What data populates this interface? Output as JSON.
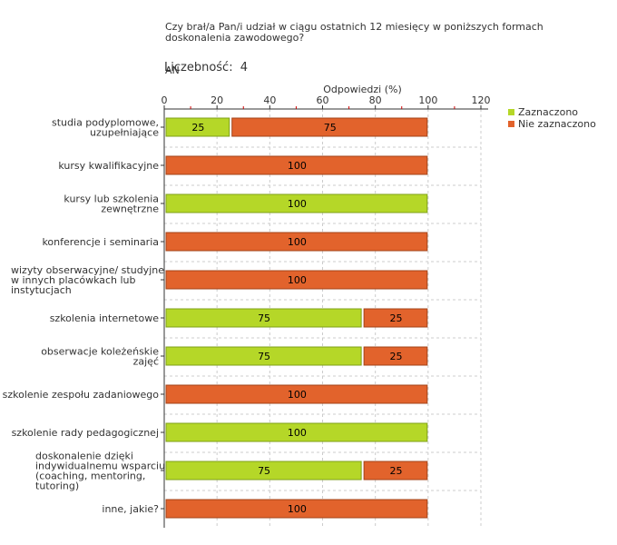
{
  "question": {
    "text": "Czy brał/a Pan/i udział w ciągu ostatnich 12 miesięcy w poniższych formach doskonalenia zawodowego?",
    "respondent_group": " AN"
  },
  "count": {
    "label": "Liczebność:",
    "value": "4"
  },
  "colors": {
    "selected": "#b5d728",
    "selected_stroke": "#7fa018",
    "not_selected": "#e2632c",
    "not_selected_stroke": "#a34318",
    "grid": "#cccccc",
    "axis": "#333333",
    "tick_red": "#cc0000"
  },
  "chart_data": {
    "type": "bar",
    "orientation": "horizontal",
    "stacked": true,
    "xlabel": "Odpowiedzi (%)",
    "xlim": [
      0,
      120
    ],
    "xticks": [
      0,
      20,
      40,
      60,
      80,
      100,
      120
    ],
    "grid": true,
    "legend_position": "top-right",
    "categories": [
      "studia podyplomowe,\nuzupełniające",
      "kursy kwalifikacyjne",
      "kursy lub szkolenia\nzewnętrzne",
      "konferencje i seminaria",
      "wizyty obserwacyjne/ studyjne\nw innych placówkach lub\ninstytucjach",
      "szkolenia internetowe",
      "obserwacje koleżeńskie\nzajęć",
      "szkolenie zespołu zadaniowego",
      "szkolenie rady pedagogicznej",
      "doskonalenie dzięki\nindywidualnemu wsparciu\n(coaching, mentoring,\ntutoring)",
      "inne, jakie?"
    ],
    "series": [
      {
        "name": "Zaznaczono",
        "color_key": "selected",
        "values": [
          25,
          0,
          100,
          0,
          0,
          75,
          75,
          0,
          100,
          75,
          0
        ]
      },
      {
        "name": "Nie zaznaczono",
        "color_key": "not_selected",
        "values": [
          75,
          100,
          0,
          100,
          100,
          25,
          25,
          100,
          0,
          25,
          100
        ]
      }
    ]
  }
}
